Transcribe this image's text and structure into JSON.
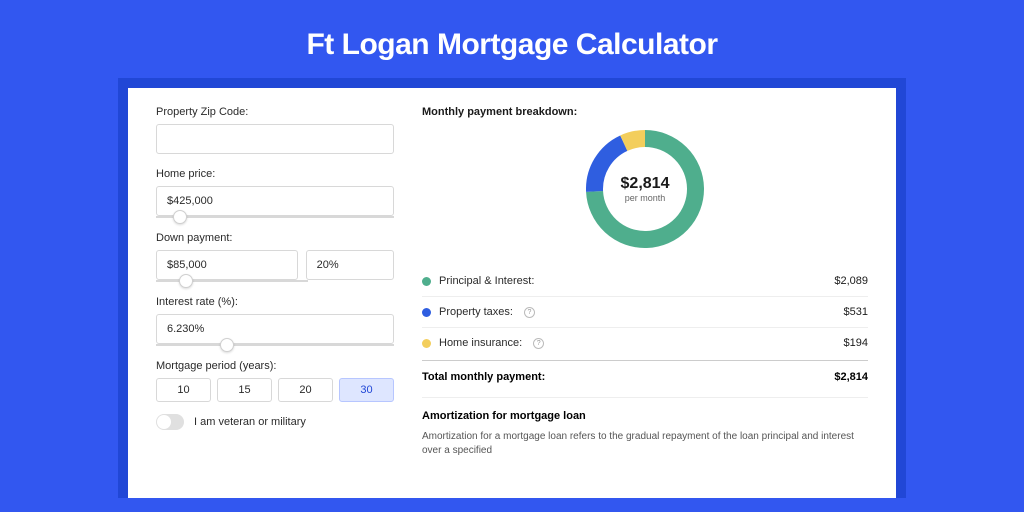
{
  "page": {
    "title": "Ft Logan Mortgage Calculator",
    "background_color": "#3257f0",
    "outer_panel_color": "#2147d6",
    "panel_color": "#ffffff"
  },
  "form": {
    "zip": {
      "label": "Property Zip Code:",
      "value": ""
    },
    "home_price": {
      "label": "Home price:",
      "value": "$425,000",
      "slider_pct": 10
    },
    "down_payment": {
      "label": "Down payment:",
      "amount": "$85,000",
      "percent": "20%",
      "slider_pct": 20
    },
    "interest_rate": {
      "label": "Interest rate (%):",
      "value": "6.230%",
      "slider_pct": 30
    },
    "period": {
      "label": "Mortgage period (years):",
      "options": [
        "10",
        "15",
        "20",
        "30"
      ],
      "selected_index": 3
    },
    "veteran": {
      "label": "I am veteran or military",
      "on": false
    }
  },
  "breakdown": {
    "title": "Monthly payment breakdown:",
    "center_amount": "$2,814",
    "center_sub": "per month",
    "donut": {
      "size": 118,
      "stroke_width": 17,
      "segments": [
        {
          "key": "principal_interest",
          "color": "#4fae8d",
          "value": 2089
        },
        {
          "key": "property_taxes",
          "color": "#2f5ee0",
          "value": 531
        },
        {
          "key": "home_insurance",
          "color": "#f3ce5c",
          "value": 194
        }
      ],
      "background_color": "#ffffff"
    },
    "rows": [
      {
        "dot_color": "#4fae8d",
        "label": "Principal & Interest:",
        "value": "$2,089",
        "help": false
      },
      {
        "dot_color": "#2f5ee0",
        "label": "Property taxes:",
        "value": "$531",
        "help": true
      },
      {
        "dot_color": "#f3ce5c",
        "label": "Home insurance:",
        "value": "$194",
        "help": true
      }
    ],
    "total_label": "Total monthly payment:",
    "total_value": "$2,814"
  },
  "amortization": {
    "title": "Amortization for mortgage loan",
    "text": "Amortization for a mortgage loan refers to the gradual repayment of the loan principal and interest over a specified"
  }
}
